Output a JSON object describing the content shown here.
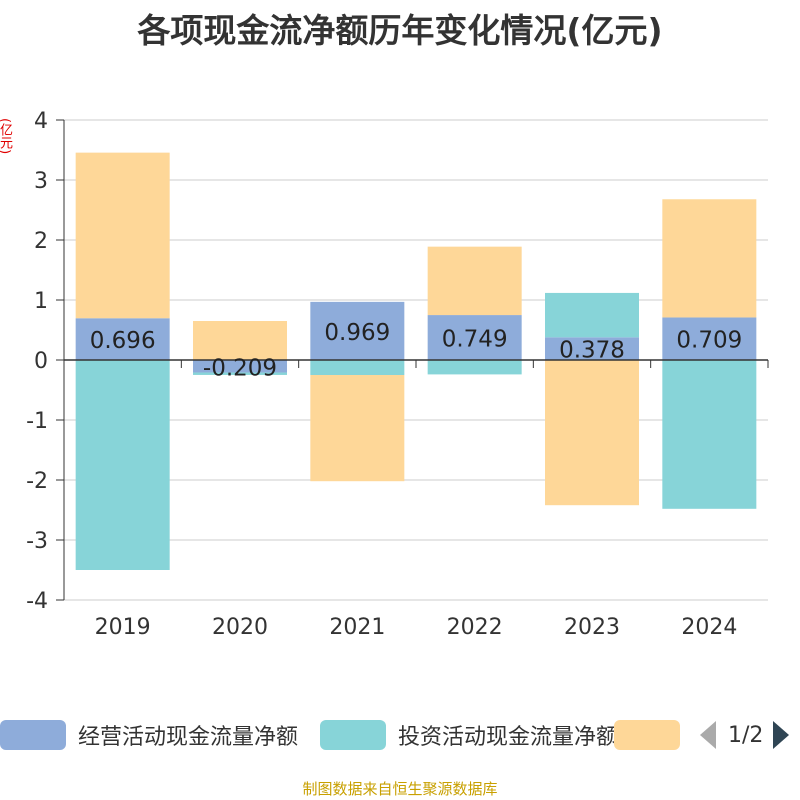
{
  "title": "各项现金流净额历年变化情况(亿元)",
  "unit_label": "(亿元)",
  "source": "制图数据来自恒生聚源数据库",
  "legend": {
    "page": "1/2"
  },
  "colors": {
    "operating": "#8eacda",
    "investing": "#87d4d8",
    "financing": "#fed798",
    "axis": "#333333",
    "grid": "#cccccc"
  },
  "chart_data": {
    "type": "bar",
    "stacked": true,
    "categories": [
      "2019",
      "2020",
      "2021",
      "2022",
      "2023",
      "2024"
    ],
    "ylim": [
      -4,
      4
    ],
    "yticks": [
      4,
      3,
      2,
      1,
      0,
      -1,
      -2,
      -3,
      -4
    ],
    "series": [
      {
        "name": "经营活动现金流量净额",
        "values": [
          0.696,
          -0.209,
          0.969,
          0.749,
          0.378,
          0.709
        ]
      },
      {
        "name": "投资活动现金流量净额",
        "values": [
          -3.5,
          -0.04,
          -0.25,
          -0.24,
          0.74,
          -2.48
        ]
      },
      {
        "values": [
          2.76,
          0.65,
          -1.77,
          1.14,
          -2.42,
          1.97
        ]
      }
    ],
    "data_labels": [
      "0.696",
      "-0.209",
      "0.969",
      "0.749",
      "0.378",
      "0.709"
    ],
    "legend_position": "bottom"
  }
}
